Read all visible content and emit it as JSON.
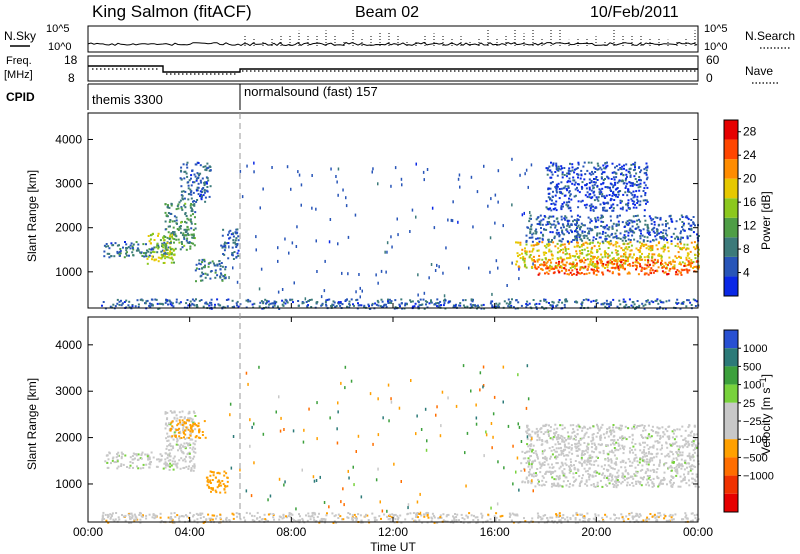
{
  "header": {
    "station": "King Salmon (fitACF)",
    "beam": "Beam 02",
    "date": "10/Feb/2011"
  },
  "noise_panel": {
    "left_label": "N.Sky",
    "right_label": "N.Search",
    "ticks_left": [
      "10^5",
      "10^0"
    ],
    "ticks_right": [
      "10^5",
      "10^0"
    ]
  },
  "freq_panel": {
    "left_label_1": "Freq.",
    "left_label_2": "[MHz]",
    "right_label": "Nave",
    "ticks_left": [
      "18",
      "8"
    ],
    "ticks_right": [
      "60",
      "0"
    ]
  },
  "cpid_panel": {
    "label": "CPID",
    "programs": [
      {
        "name": "themis 3300",
        "start_hour": 0,
        "end_hour": 6
      },
      {
        "name": "normalsound (fast) 157",
        "start_hour": 6,
        "end_hour": 24
      }
    ]
  },
  "colors": {
    "power": [
      "#0a28e6",
      "#2855b8",
      "#3c7a7a",
      "#4f9e46",
      "#8cc81e",
      "#e6c800",
      "#ff8c00",
      "#ff4600",
      "#e60000"
    ],
    "velocity": [
      "#2850d2",
      "#2c7a78",
      "#3ca03c",
      "#78d23c",
      "#c8c8c8",
      "#c8c8c8",
      "#ffa000",
      "#ff6e00",
      "#f03200",
      "#e60000"
    ],
    "dashed_line": "#999999"
  },
  "chart_data": [
    {
      "type": "heatmap",
      "name": "power",
      "title": "",
      "xlabel": "Time UT",
      "ylabel": "Slant Range [km]",
      "xlim": [
        0,
        24
      ],
      "ylim": [
        180,
        4600
      ],
      "x_ticks": [
        "00:00",
        "04:00",
        "08:00",
        "12:00",
        "16:00",
        "20:00",
        "00:00"
      ],
      "y_ticks": [
        1000,
        2000,
        3000,
        4000
      ],
      "colorbar": {
        "label": "Power [dB]",
        "ticks": [
          4,
          8,
          12,
          16,
          20,
          24,
          28
        ],
        "range": [
          0,
          30
        ]
      },
      "regions": [
        {
          "x": [
            0.6,
            3.2
          ],
          "y": [
            1350,
            1700
          ],
          "value": 7
        },
        {
          "x": [
            2.3,
            3.4
          ],
          "y": [
            1200,
            1900
          ],
          "value": 16
        },
        {
          "x": [
            3.0,
            4.2
          ],
          "y": [
            1500,
            2600
          ],
          "value": 10
        },
        {
          "x": [
            3.6,
            4.8
          ],
          "y": [
            2600,
            3500
          ],
          "value": 6
        },
        {
          "x": [
            4.2,
            5.4
          ],
          "y": [
            800,
            1300
          ],
          "value": 8
        },
        {
          "x": [
            5.2,
            5.9
          ],
          "y": [
            1300,
            2000
          ],
          "value": 5
        },
        {
          "x": [
            0.5,
            24
          ],
          "y": [
            180,
            400
          ],
          "value": 6
        },
        {
          "x": [
            16.8,
            24
          ],
          "y": [
            1100,
            1700
          ],
          "value": 18
        },
        {
          "x": [
            17.5,
            24
          ],
          "y": [
            950,
            1300
          ],
          "value": 24
        },
        {
          "x": [
            17.2,
            24
          ],
          "y": [
            1700,
            2300
          ],
          "value": 6
        },
        {
          "x": [
            18.0,
            22.0
          ],
          "y": [
            2400,
            3500
          ],
          "value": 4
        }
      ]
    },
    {
      "type": "heatmap",
      "name": "velocity",
      "title": "",
      "xlabel": "Time UT",
      "ylabel": "Slant Range [km]",
      "xlim": [
        0,
        24
      ],
      "ylim": [
        180,
        4600
      ],
      "x_ticks": [
        "00:00",
        "04:00",
        "08:00",
        "12:00",
        "16:00",
        "20:00",
        "00:00"
      ],
      "y_ticks": [
        1000,
        2000,
        3000,
        4000
      ],
      "colorbar": {
        "label": "Velocity [m s^-1]",
        "ticks": [
          "1000",
          "500",
          "100",
          "25",
          "−25",
          "−100",
          "−500",
          "−1000"
        ]
      },
      "regions": [
        {
          "x": [
            0.6,
            3.2
          ],
          "y": [
            1350,
            1700
          ],
          "value": 0
        },
        {
          "x": [
            3.0,
            4.2
          ],
          "y": [
            1300,
            2600
          ],
          "value": 0
        },
        {
          "x": [
            3.2,
            4.6
          ],
          "y": [
            2000,
            2400
          ],
          "value": -300
        },
        {
          "x": [
            4.6,
            5.5
          ],
          "y": [
            800,
            1300
          ],
          "value": -400
        },
        {
          "x": [
            0.5,
            24
          ],
          "y": [
            180,
            400
          ],
          "value": -80
        },
        {
          "x": [
            17.0,
            24
          ],
          "y": [
            950,
            1800
          ],
          "value": 0
        },
        {
          "x": [
            17.2,
            24
          ],
          "y": [
            1800,
            2300
          ],
          "value": 0
        }
      ]
    }
  ]
}
